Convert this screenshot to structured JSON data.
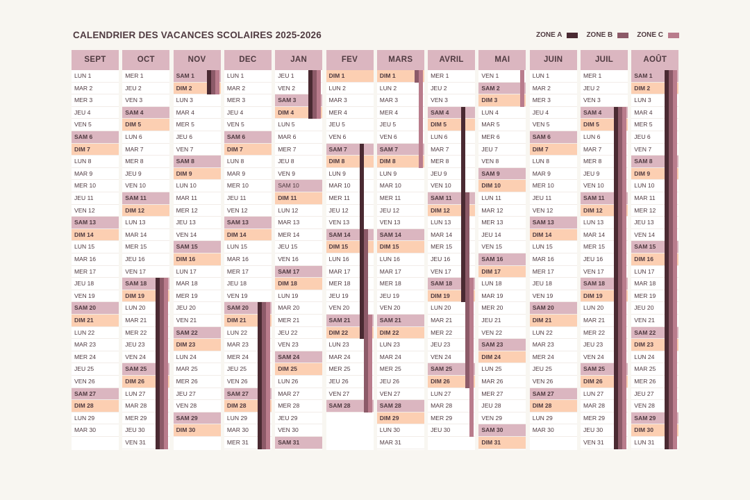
{
  "title": "CALENDRIER DES VACANCES SCOLAIRES 2025-2026",
  "legend": [
    {
      "label": "ZONE A",
      "color": "#4a2a32"
    },
    {
      "label": "ZONE B",
      "color": "#8c5a68"
    },
    {
      "label": "ZONE C",
      "color": "#b97c8c"
    }
  ],
  "colors": {
    "header": "#dbb6c0",
    "saturday": "#dbb6c0",
    "sunday": "#fccfb2",
    "holiday": "#dbb6c0",
    "weekday": "#ffffff",
    "text": "#4f3a40"
  },
  "months": [
    {
      "name": "SEPT",
      "first_weekday": "LUN",
      "ndays": 30,
      "holidays": [],
      "vacations": []
    },
    {
      "name": "OCT",
      "first_weekday": "MER",
      "ndays": 31,
      "holidays": [],
      "vacations": [
        {
          "zone": "A",
          "from": 18,
          "to": 31
        },
        {
          "zone": "B",
          "from": 18,
          "to": 31
        },
        {
          "zone": "C",
          "from": 18,
          "to": 31
        }
      ]
    },
    {
      "name": "NOV",
      "first_weekday": "SAM",
      "ndays": 30,
      "holidays": [],
      "vacations": [
        {
          "zone": "A",
          "from": 1,
          "to": 2
        },
        {
          "zone": "B",
          "from": 1,
          "to": 2
        },
        {
          "zone": "C",
          "from": 1,
          "to": 2
        }
      ]
    },
    {
      "name": "DEC",
      "first_weekday": "LUN",
      "ndays": 31,
      "holidays": [],
      "vacations": [
        {
          "zone": "A",
          "from": 20,
          "to": 31
        },
        {
          "zone": "B",
          "from": 20,
          "to": 31
        },
        {
          "zone": "C",
          "from": 20,
          "to": 31
        }
      ]
    },
    {
      "name": "JAN",
      "first_weekday": "JEU",
      "ndays": 31,
      "holidays": [
        10
      ],
      "vacations": [
        {
          "zone": "A",
          "from": 1,
          "to": 4
        },
        {
          "zone": "B",
          "from": 1,
          "to": 4
        },
        {
          "zone": "C",
          "from": 1,
          "to": 4
        }
      ]
    },
    {
      "name": "FEV",
      "first_weekday": "DIM",
      "ndays": 28,
      "holidays": [],
      "vacations": [
        {
          "zone": "A",
          "from": 7,
          "to": 22
        },
        {
          "zone": "B",
          "from": 14,
          "to": 28
        },
        {
          "zone": "C",
          "from": 21,
          "to": 28
        }
      ]
    },
    {
      "name": "MARS",
      "first_weekday": "DIM",
      "ndays": 31,
      "holidays": [],
      "vacations": [
        {
          "zone": "B",
          "from": 1,
          "to": 1
        },
        {
          "zone": "C",
          "from": 1,
          "to": 8
        }
      ]
    },
    {
      "name": "AVRIL",
      "first_weekday": "MER",
      "ndays": 30,
      "holidays": [],
      "vacations": [
        {
          "zone": "A",
          "from": 4,
          "to": 19
        },
        {
          "zone": "B",
          "from": 11,
          "to": 26
        },
        {
          "zone": "C",
          "from": 18,
          "to": 30
        }
      ]
    },
    {
      "name": "MAI",
      "first_weekday": "VEN",
      "ndays": 31,
      "holidays": [],
      "vacations": [
        {
          "zone": "C",
          "from": 1,
          "to": 3
        }
      ]
    },
    {
      "name": "JUIN",
      "first_weekday": "LUN",
      "ndays": 30,
      "holidays": [],
      "vacations": []
    },
    {
      "name": "JUIL",
      "first_weekday": "MER",
      "ndays": 31,
      "holidays": [],
      "vacations": [
        {
          "zone": "A",
          "from": 4,
          "to": 31
        },
        {
          "zone": "B",
          "from": 4,
          "to": 31
        },
        {
          "zone": "C",
          "from": 4,
          "to": 31
        }
      ]
    },
    {
      "name": "AOÛT",
      "first_weekday": "SAM",
      "ndays": 31,
      "holidays": [],
      "vacations": [
        {
          "zone": "A",
          "from": 1,
          "to": 31
        },
        {
          "zone": "B",
          "from": 1,
          "to": 31
        },
        {
          "zone": "C",
          "from": 1,
          "to": 31
        }
      ]
    }
  ]
}
